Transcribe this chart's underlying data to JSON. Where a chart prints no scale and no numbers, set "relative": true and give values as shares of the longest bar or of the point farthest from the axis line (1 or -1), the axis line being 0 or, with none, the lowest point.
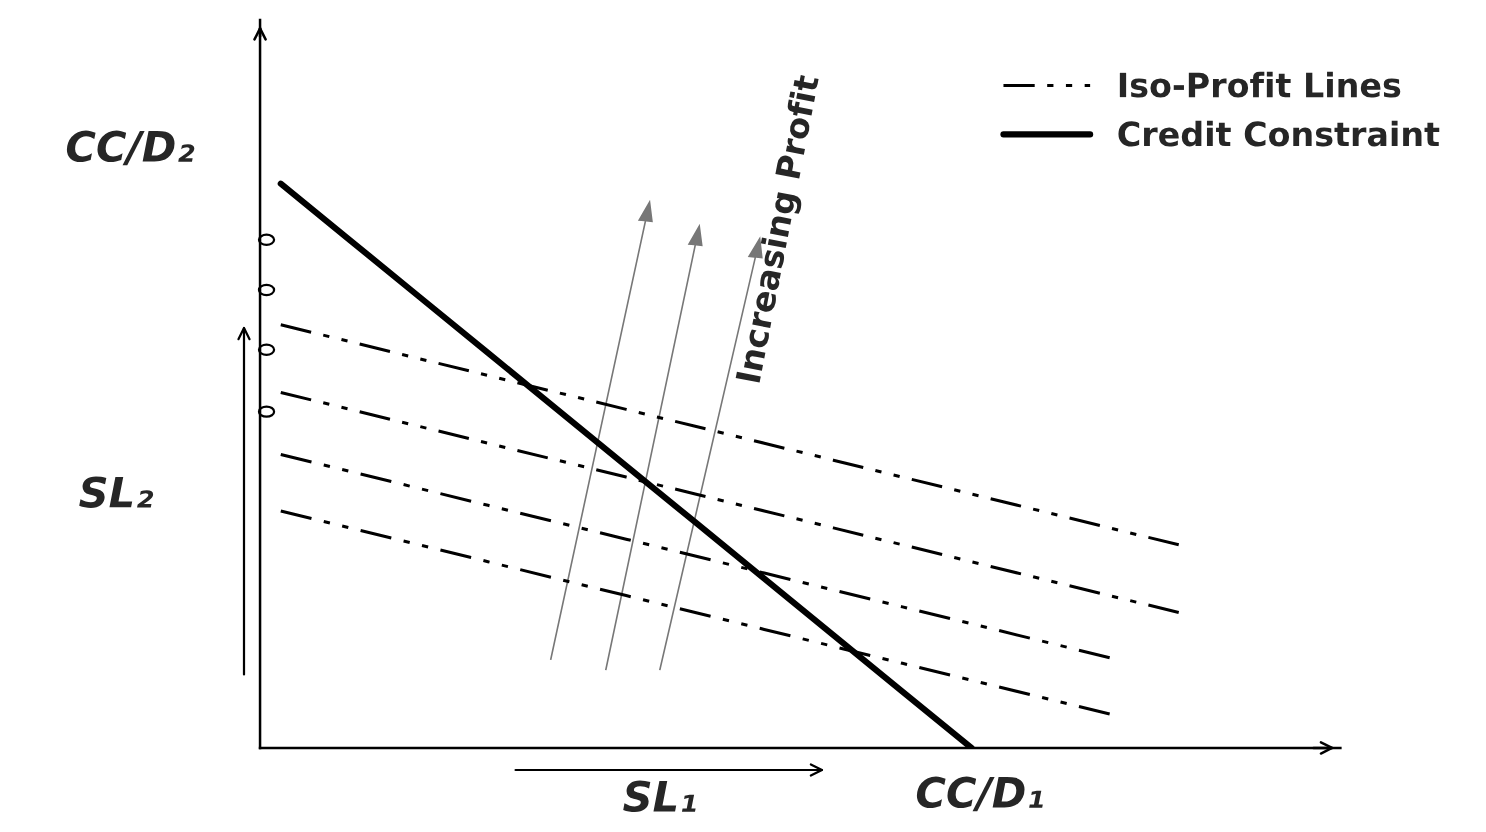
{
  "chart_data": {
    "type": "line",
    "relative": true,
    "xlabel": "SL₁",
    "ylabel": "SL₂",
    "annotations": [
      "CC/D₂",
      "CC/D₁",
      "Increasing Profit"
    ],
    "legend": "top right",
    "categories": [
      null,
      null,
      null,
      null,
      null,
      null,
      null,
      null,
      null,
      null,
      null,
      null,
      null,
      null
    ],
    "series": [
      {
        "name": "Iso-Profit Lines",
        "line_style": "dashed",
        "color": "#000000",
        "values": [
          0.75,
          0.72,
          0.69,
          0.66,
          0.63,
          0.6,
          0.57,
          0.54,
          0.51,
          0.48,
          0.45,
          0.42,
          0.39,
          0.36
        ]
      },
      {
        "line_style": "dashed",
        "color": "#000000",
        "values": [
          0.63,
          0.6,
          0.57,
          0.54,
          0.51,
          0.48,
          0.45,
          0.42,
          0.39,
          0.36,
          0.33,
          0.3,
          0.27,
          0.24
        ]
      },
      {
        "line_style": "dashed",
        "color": "#000000",
        "values": [
          0.52,
          0.49,
          0.46,
          0.43,
          0.4,
          0.37,
          0.34,
          0.31,
          0.28,
          0.25,
          0.22,
          0.19,
          0.16,
          null
        ]
      },
      {
        "line_style": "dashed",
        "color": "#000000",
        "values": [
          0.42,
          0.39,
          0.36,
          0.33,
          0.3,
          0.27,
          0.24,
          0.21,
          0.18,
          0.15,
          0.12,
          0.09,
          0.06,
          null
        ]
      },
      {
        "name": "Credit Constraint",
        "line_style": "solid",
        "color": "#000000",
        "values": [
          1,
          0.9,
          0.8,
          0.7,
          0.6,
          0.5,
          0.4,
          0.3,
          0.2,
          0.1,
          0,
          null,
          null,
          null
        ]
      }
    ]
  }
}
